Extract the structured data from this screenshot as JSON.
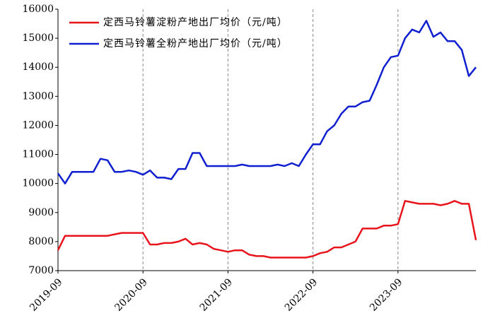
{
  "chart_data": {
    "type": "line",
    "x": [
      "2019-09",
      "2019-10",
      "2019-11",
      "2019-12",
      "2020-01",
      "2020-02",
      "2020-03",
      "2020-04",
      "2020-05",
      "2020-06",
      "2020-07",
      "2020-08",
      "2020-09",
      "2020-10",
      "2020-11",
      "2020-12",
      "2021-01",
      "2021-02",
      "2021-03",
      "2021-04",
      "2021-05",
      "2021-06",
      "2021-07",
      "2021-08",
      "2021-09",
      "2021-10",
      "2021-11",
      "2021-12",
      "2022-01",
      "2022-02",
      "2022-03",
      "2022-04",
      "2022-05",
      "2022-06",
      "2022-07",
      "2022-08",
      "2022-09",
      "2022-10",
      "2022-11",
      "2022-12",
      "2023-01",
      "2023-02",
      "2023-03",
      "2023-04",
      "2023-05",
      "2023-06",
      "2023-07",
      "2023-08",
      "2023-09",
      "2023-10",
      "2023-11",
      "2023-12",
      "2024-01",
      "2024-02",
      "2024-03",
      "2024-04",
      "2024-05",
      "2024-06",
      "2024-07",
      "2024-08"
    ],
    "series": [
      {
        "name": "定西马铃薯淀粉产地出厂均价（元/吨）",
        "color": "#e8141c",
        "values": [
          7700,
          8200,
          8200,
          8200,
          8200,
          8200,
          8200,
          8200,
          8250,
          8300,
          8300,
          8300,
          8300,
          7900,
          7900,
          7950,
          7950,
          8000,
          8100,
          7900,
          7950,
          7900,
          7750,
          7700,
          7650,
          7700,
          7700,
          7550,
          7500,
          7500,
          7450,
          7450,
          7450,
          7450,
          7450,
          7450,
          7500,
          7600,
          7650,
          7800,
          7800,
          7900,
          8000,
          8450,
          8450,
          8450,
          8550,
          8550,
          8600,
          9400,
          9350,
          9300,
          9300,
          9300,
          9250,
          9300,
          9400,
          9300,
          9300,
          8050
        ]
      },
      {
        "name": "定西马铃薯全粉产地出厂均价（元/吨）",
        "color": "#1020d0",
        "values": [
          10350,
          10000,
          10400,
          10400,
          10400,
          10400,
          10850,
          10800,
          10400,
          10400,
          10450,
          10400,
          10300,
          10450,
          10200,
          10200,
          10150,
          10500,
          10500,
          11050,
          11050,
          10600,
          10600,
          10600,
          10600,
          10600,
          10650,
          10600,
          10600,
          10600,
          10600,
          10650,
          10600,
          10700,
          10600,
          11000,
          11350,
          11350,
          11800,
          12000,
          12400,
          12650,
          12650,
          12800,
          12850,
          13400,
          14000,
          14350,
          14400,
          15000,
          15300,
          15200,
          15600,
          15050,
          15200,
          14900,
          14900,
          14600,
          13700,
          14000
        ]
      }
    ],
    "xlim": [
      "2019-09",
      "2024-08"
    ],
    "xticks": [
      "2019-09",
      "2020-09",
      "2021-09",
      "2022-09",
      "2023-09"
    ],
    "ylim": [
      7000,
      16000
    ],
    "yticks": [
      7000,
      8000,
      9000,
      10000,
      11000,
      12000,
      13000,
      14000,
      15000,
      16000
    ],
    "grid": true
  }
}
